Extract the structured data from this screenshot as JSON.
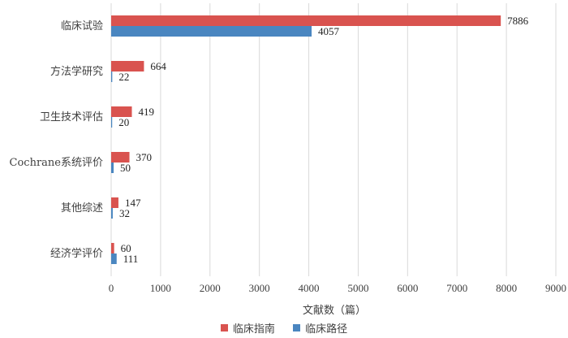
{
  "chart_data": {
    "type": "bar",
    "orientation": "horizontal",
    "categories": [
      "临床试验",
      "方法学研究",
      "卫生技术评估",
      "Cochrane系统评价",
      "其他综述",
      "经济学评价"
    ],
    "series": [
      {
        "name": "临床指南",
        "color": "#d9534f",
        "values": [
          7886,
          664,
          419,
          370,
          147,
          60
        ]
      },
      {
        "name": "临床路径",
        "color": "#4a86c0",
        "values": [
          4057,
          22,
          20,
          50,
          32,
          111
        ]
      }
    ],
    "xlabel": "文献数（篇）",
    "ylabel": "",
    "xlim": [
      0,
      9000
    ],
    "x_ticks": [
      0,
      1000,
      2000,
      3000,
      4000,
      5000,
      6000,
      7000,
      8000,
      9000
    ],
    "grid": "vertical",
    "legend_position": "bottom"
  }
}
